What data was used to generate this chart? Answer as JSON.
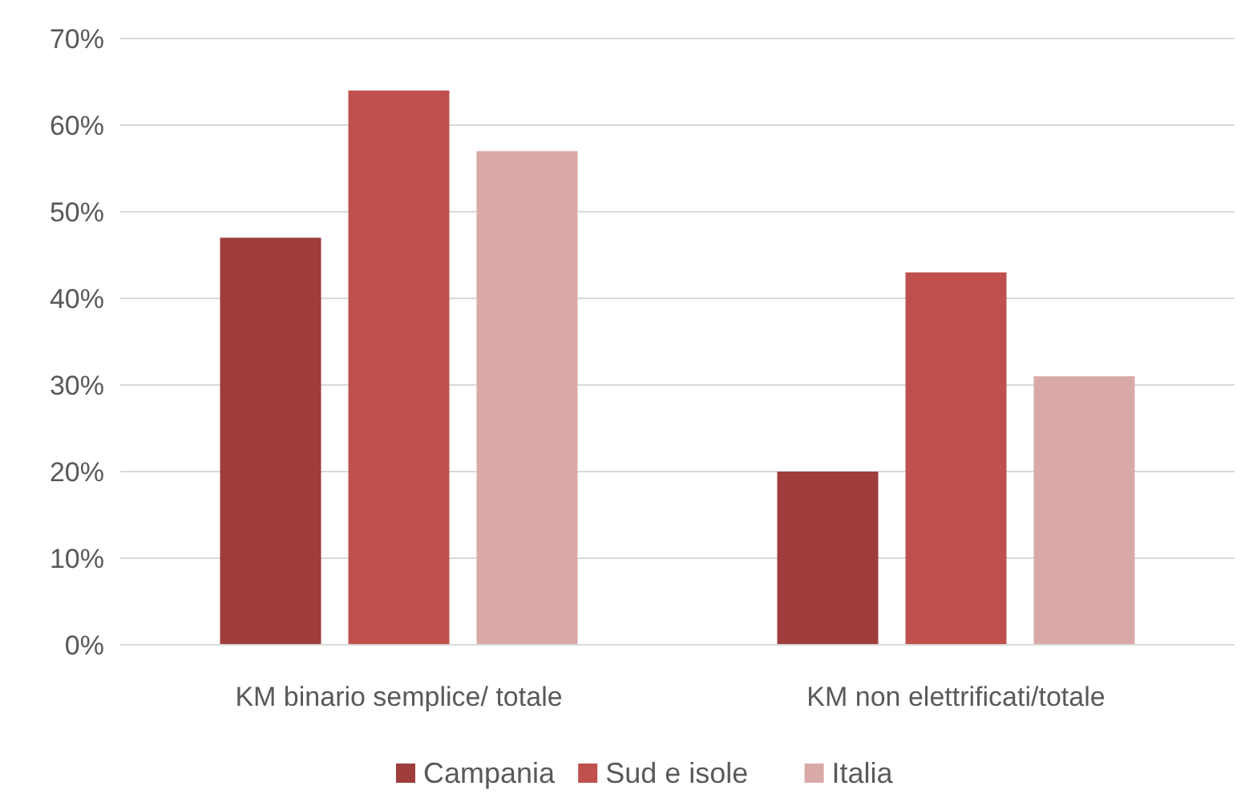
{
  "chart_data": {
    "type": "bar",
    "categories": [
      "KM binario semplice/ totale",
      "KM non elettrificati/totale"
    ],
    "series": [
      {
        "name": "Campania",
        "color": "#9e3d3b",
        "values": [
          47,
          20
        ]
      },
      {
        "name": "Sud e isole",
        "color": "#c0504d",
        "values": [
          64,
          43
        ]
      },
      {
        "name": "Italia",
        "color": "#d9a9a8",
        "values": [
          57,
          31
        ]
      }
    ],
    "ylim": [
      0,
      70
    ],
    "yticks": [
      {
        "value": 0,
        "label": "0%"
      },
      {
        "value": 10,
        "label": "10%"
      },
      {
        "value": 20,
        "label": "20%"
      },
      {
        "value": 30,
        "label": "30%"
      },
      {
        "value": 40,
        "label": "40%"
      },
      {
        "value": 50,
        "label": "50%"
      },
      {
        "value": 60,
        "label": "60%"
      },
      {
        "value": 70,
        "label": "70%"
      }
    ],
    "grid": "y",
    "legend": "bottom"
  }
}
